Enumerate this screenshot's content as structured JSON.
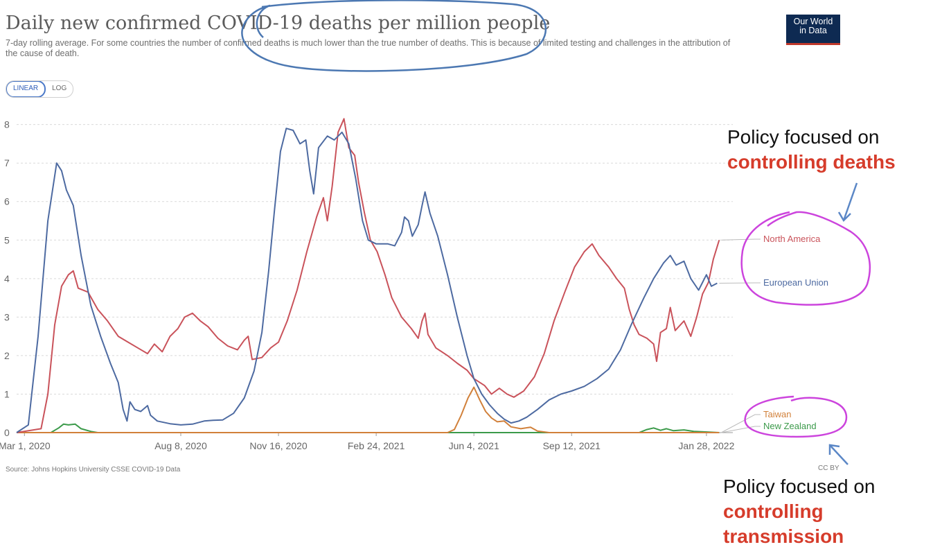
{
  "header": {
    "title": "Daily new confirmed COVID-19 deaths per million people",
    "subtitle": "7-day rolling average. For some countries the number of confirmed deaths is much lower than the true number of deaths. This is because of limited testing and challenges in the attribution of the cause of death."
  },
  "logo": {
    "line1": "Our World",
    "line2": "in Data"
  },
  "scale_toggle": {
    "linear_label": "LINEAR",
    "log_label": "LOG",
    "selected": "LINEAR"
  },
  "footer": {
    "source": "Source: Johns Hopkins University CSSE COVID-19 Data",
    "license": "CC BY"
  },
  "annotations": {
    "top": {
      "line1": "Policy focused on",
      "line2": "controlling deaths"
    },
    "bottom": {
      "line1": "Policy focused on",
      "line2": "controlling",
      "line3": "transmission"
    }
  },
  "colors": {
    "north_america": "#c9525a",
    "european_union": "#4d6aa1",
    "taiwan": "#d1803a",
    "new_zealand": "#3b9a4a",
    "highlight": "#cc44dd",
    "arrow": "#5b87c6",
    "title_circle": "#4c78b2"
  },
  "chart_data": {
    "type": "line",
    "title": "Daily new confirmed COVID-19 deaths per million people",
    "ylim": [
      0,
      8.3
    ],
    "yticks": [
      0,
      1,
      2,
      3,
      4,
      5,
      6,
      7,
      8
    ],
    "xlim": [
      "2020-02-22",
      "2022-02-24"
    ],
    "xticks": [
      {
        "date": "2020-03-01",
        "label": "Mar 1, 2020"
      },
      {
        "date": "2020-08-08",
        "label": "Aug 8, 2020"
      },
      {
        "date": "2020-11-16",
        "label": "Nov 16, 2020"
      },
      {
        "date": "2021-02-24",
        "label": "Feb 24, 2021"
      },
      {
        "date": "2021-06-04",
        "label": "Jun 4, 2021"
      },
      {
        "date": "2021-09-12",
        "label": "Sep 12, 2021"
      },
      {
        "date": "2022-01-28",
        "label": "Jan 28, 2022"
      }
    ],
    "grid": true,
    "legend": "right, labels at line ends",
    "series": [
      {
        "key": "european_union",
        "name": "European Union",
        "points": [
          [
            "2020-02-22",
            0
          ],
          [
            "2020-03-05",
            0.2
          ],
          [
            "2020-03-15",
            2.5
          ],
          [
            "2020-03-25",
            5.5
          ],
          [
            "2020-04-03",
            7.0
          ],
          [
            "2020-04-08",
            6.8
          ],
          [
            "2020-04-13",
            6.3
          ],
          [
            "2020-04-20",
            5.9
          ],
          [
            "2020-04-28",
            4.6
          ],
          [
            "2020-05-08",
            3.3
          ],
          [
            "2020-05-18",
            2.5
          ],
          [
            "2020-05-28",
            1.8
          ],
          [
            "2020-06-05",
            1.3
          ],
          [
            "2020-06-10",
            0.6
          ],
          [
            "2020-06-14",
            0.3
          ],
          [
            "2020-06-17",
            0.8
          ],
          [
            "2020-06-22",
            0.6
          ],
          [
            "2020-06-28",
            0.55
          ],
          [
            "2020-07-05",
            0.7
          ],
          [
            "2020-07-08",
            0.45
          ],
          [
            "2020-07-15",
            0.3
          ],
          [
            "2020-07-28",
            0.23
          ],
          [
            "2020-08-08",
            0.2
          ],
          [
            "2020-08-20",
            0.22
          ],
          [
            "2020-09-01",
            0.3
          ],
          [
            "2020-09-10",
            0.32
          ],
          [
            "2020-09-20",
            0.33
          ],
          [
            "2020-10-01",
            0.5
          ],
          [
            "2020-10-12",
            0.9
          ],
          [
            "2020-10-22",
            1.6
          ],
          [
            "2020-10-30",
            2.6
          ],
          [
            "2020-11-06",
            4.2
          ],
          [
            "2020-11-12",
            5.8
          ],
          [
            "2020-11-18",
            7.3
          ],
          [
            "2020-11-24",
            7.9
          ],
          [
            "2020-12-01",
            7.85
          ],
          [
            "2020-12-08",
            7.5
          ],
          [
            "2020-12-14",
            7.6
          ],
          [
            "2020-12-18",
            6.8
          ],
          [
            "2020-12-22",
            6.2
          ],
          [
            "2020-12-27",
            7.4
          ],
          [
            "2021-01-05",
            7.7
          ],
          [
            "2021-01-12",
            7.6
          ],
          [
            "2021-01-20",
            7.8
          ],
          [
            "2021-01-27",
            7.5
          ],
          [
            "2021-02-03",
            6.6
          ],
          [
            "2021-02-10",
            5.5
          ],
          [
            "2021-02-16",
            5.0
          ],
          [
            "2021-02-24",
            4.9
          ],
          [
            "2021-03-08",
            4.9
          ],
          [
            "2021-03-15",
            4.85
          ],
          [
            "2021-03-22",
            5.2
          ],
          [
            "2021-03-25",
            5.6
          ],
          [
            "2021-03-29",
            5.5
          ],
          [
            "2021-04-02",
            5.1
          ],
          [
            "2021-04-08",
            5.4
          ],
          [
            "2021-04-12",
            5.9
          ],
          [
            "2021-04-15",
            6.25
          ],
          [
            "2021-04-20",
            5.7
          ],
          [
            "2021-04-28",
            5.1
          ],
          [
            "2021-05-08",
            4.1
          ],
          [
            "2021-05-18",
            3.0
          ],
          [
            "2021-05-28",
            2.0
          ],
          [
            "2021-06-04",
            1.4
          ],
          [
            "2021-06-12",
            1.0
          ],
          [
            "2021-06-20",
            0.72
          ],
          [
            "2021-06-28",
            0.5
          ],
          [
            "2021-07-05",
            0.35
          ],
          [
            "2021-07-12",
            0.25
          ],
          [
            "2021-07-20",
            0.3
          ],
          [
            "2021-07-28",
            0.4
          ],
          [
            "2021-08-08",
            0.6
          ],
          [
            "2021-08-20",
            0.85
          ],
          [
            "2021-09-01",
            1.0
          ],
          [
            "2021-09-12",
            1.08
          ],
          [
            "2021-09-25",
            1.2
          ],
          [
            "2021-10-08",
            1.4
          ],
          [
            "2021-10-20",
            1.65
          ],
          [
            "2021-11-01",
            2.15
          ],
          [
            "2021-11-12",
            2.8
          ],
          [
            "2021-11-25",
            3.5
          ],
          [
            "2021-12-05",
            4.0
          ],
          [
            "2021-12-15",
            4.4
          ],
          [
            "2021-12-22",
            4.6
          ],
          [
            "2021-12-28",
            4.35
          ],
          [
            "2022-01-05",
            4.45
          ],
          [
            "2022-01-12",
            4.0
          ],
          [
            "2022-01-20",
            3.7
          ],
          [
            "2022-01-28",
            4.1
          ],
          [
            "2022-02-02",
            3.8
          ],
          [
            "2022-02-08",
            3.88
          ]
        ]
      },
      {
        "key": "north_america",
        "name": "North America",
        "points": [
          [
            "2020-02-22",
            0
          ],
          [
            "2020-03-18",
            0.1
          ],
          [
            "2020-03-25",
            1.0
          ],
          [
            "2020-04-01",
            2.8
          ],
          [
            "2020-04-08",
            3.8
          ],
          [
            "2020-04-15",
            4.1
          ],
          [
            "2020-04-20",
            4.2
          ],
          [
            "2020-04-25",
            3.75
          ],
          [
            "2020-05-05",
            3.65
          ],
          [
            "2020-05-15",
            3.2
          ],
          [
            "2020-05-25",
            2.9
          ],
          [
            "2020-06-05",
            2.5
          ],
          [
            "2020-06-15",
            2.35
          ],
          [
            "2020-06-25",
            2.2
          ],
          [
            "2020-07-05",
            2.05
          ],
          [
            "2020-07-12",
            2.3
          ],
          [
            "2020-07-20",
            2.1
          ],
          [
            "2020-07-28",
            2.5
          ],
          [
            "2020-08-05",
            2.7
          ],
          [
            "2020-08-12",
            3.0
          ],
          [
            "2020-08-20",
            3.1
          ],
          [
            "2020-08-28",
            2.9
          ],
          [
            "2020-09-05",
            2.75
          ],
          [
            "2020-09-15",
            2.45
          ],
          [
            "2020-09-25",
            2.25
          ],
          [
            "2020-10-05",
            2.15
          ],
          [
            "2020-10-12",
            2.4
          ],
          [
            "2020-10-16",
            2.5
          ],
          [
            "2020-10-20",
            1.9
          ],
          [
            "2020-10-30",
            1.95
          ],
          [
            "2020-11-08",
            2.2
          ],
          [
            "2020-11-16",
            2.35
          ],
          [
            "2020-11-25",
            2.9
          ],
          [
            "2020-12-05",
            3.7
          ],
          [
            "2020-12-15",
            4.7
          ],
          [
            "2020-12-25",
            5.6
          ],
          [
            "2021-01-01",
            6.1
          ],
          [
            "2021-01-05",
            5.5
          ],
          [
            "2021-01-10",
            6.4
          ],
          [
            "2021-01-16",
            7.8
          ],
          [
            "2021-01-22",
            8.15
          ],
          [
            "2021-01-27",
            7.4
          ],
          [
            "2021-02-02",
            7.2
          ],
          [
            "2021-02-06",
            6.5
          ],
          [
            "2021-02-12",
            5.7
          ],
          [
            "2021-02-18",
            5.0
          ],
          [
            "2021-02-25",
            4.7
          ],
          [
            "2021-03-05",
            4.1
          ],
          [
            "2021-03-12",
            3.5
          ],
          [
            "2021-03-22",
            3.0
          ],
          [
            "2021-04-01",
            2.7
          ],
          [
            "2021-04-08",
            2.45
          ],
          [
            "2021-04-12",
            2.9
          ],
          [
            "2021-04-15",
            3.1
          ],
          [
            "2021-04-18",
            2.55
          ],
          [
            "2021-04-26",
            2.2
          ],
          [
            "2021-05-08",
            2.0
          ],
          [
            "2021-05-18",
            1.8
          ],
          [
            "2021-05-28",
            1.62
          ],
          [
            "2021-06-04",
            1.4
          ],
          [
            "2021-06-15",
            1.22
          ],
          [
            "2021-06-22",
            1.0
          ],
          [
            "2021-06-30",
            1.15
          ],
          [
            "2021-07-08",
            1.0
          ],
          [
            "2021-07-15",
            0.92
          ],
          [
            "2021-07-25",
            1.08
          ],
          [
            "2021-08-05",
            1.45
          ],
          [
            "2021-08-15",
            2.05
          ],
          [
            "2021-08-25",
            2.9
          ],
          [
            "2021-09-05",
            3.65
          ],
          [
            "2021-09-15",
            4.3
          ],
          [
            "2021-09-25",
            4.7
          ],
          [
            "2021-10-03",
            4.9
          ],
          [
            "2021-10-10",
            4.6
          ],
          [
            "2021-10-20",
            4.3
          ],
          [
            "2021-10-28",
            4.0
          ],
          [
            "2021-11-05",
            3.75
          ],
          [
            "2021-11-10",
            3.2
          ],
          [
            "2021-11-15",
            2.8
          ],
          [
            "2021-11-20",
            2.55
          ],
          [
            "2021-11-28",
            2.45
          ],
          [
            "2021-12-05",
            2.3
          ],
          [
            "2021-12-08",
            1.85
          ],
          [
            "2021-12-12",
            2.6
          ],
          [
            "2021-12-18",
            2.7
          ],
          [
            "2021-12-22",
            3.25
          ],
          [
            "2021-12-27",
            2.65
          ],
          [
            "2022-01-05",
            2.9
          ],
          [
            "2022-01-12",
            2.5
          ],
          [
            "2022-01-18",
            3.0
          ],
          [
            "2022-01-24",
            3.6
          ],
          [
            "2022-01-30",
            3.9
          ],
          [
            "2022-02-04",
            4.5
          ],
          [
            "2022-02-10",
            5.0
          ]
        ]
      },
      {
        "key": "taiwan",
        "name": "Taiwan",
        "points": [
          [
            "2020-02-22",
            0
          ],
          [
            "2021-05-08",
            0
          ],
          [
            "2021-05-15",
            0.08
          ],
          [
            "2021-05-22",
            0.45
          ],
          [
            "2021-05-29",
            0.9
          ],
          [
            "2021-06-04",
            1.18
          ],
          [
            "2021-06-10",
            0.85
          ],
          [
            "2021-06-16",
            0.55
          ],
          [
            "2021-06-22",
            0.38
          ],
          [
            "2021-06-28",
            0.28
          ],
          [
            "2021-07-05",
            0.3
          ],
          [
            "2021-07-12",
            0.15
          ],
          [
            "2021-07-22",
            0.1
          ],
          [
            "2021-08-01",
            0.14
          ],
          [
            "2021-08-08",
            0.04
          ],
          [
            "2021-08-20",
            0
          ],
          [
            "2022-02-10",
            0
          ]
        ]
      },
      {
        "key": "new_zealand",
        "name": "New Zealand",
        "points": [
          [
            "2020-02-22",
            0
          ],
          [
            "2020-03-28",
            0
          ],
          [
            "2020-04-05",
            0.12
          ],
          [
            "2020-04-10",
            0.22
          ],
          [
            "2020-04-15",
            0.2
          ],
          [
            "2020-04-22",
            0.22
          ],
          [
            "2020-04-28",
            0.1
          ],
          [
            "2020-05-08",
            0.03
          ],
          [
            "2020-05-15",
            0
          ],
          [
            "2021-11-20",
            0
          ],
          [
            "2021-11-28",
            0.08
          ],
          [
            "2021-12-05",
            0.12
          ],
          [
            "2021-12-12",
            0.06
          ],
          [
            "2021-12-18",
            0.1
          ],
          [
            "2021-12-25",
            0.05
          ],
          [
            "2022-01-05",
            0.07
          ],
          [
            "2022-01-15",
            0.03
          ],
          [
            "2022-01-25",
            0.02
          ],
          [
            "2022-02-10",
            0
          ]
        ]
      }
    ]
  }
}
